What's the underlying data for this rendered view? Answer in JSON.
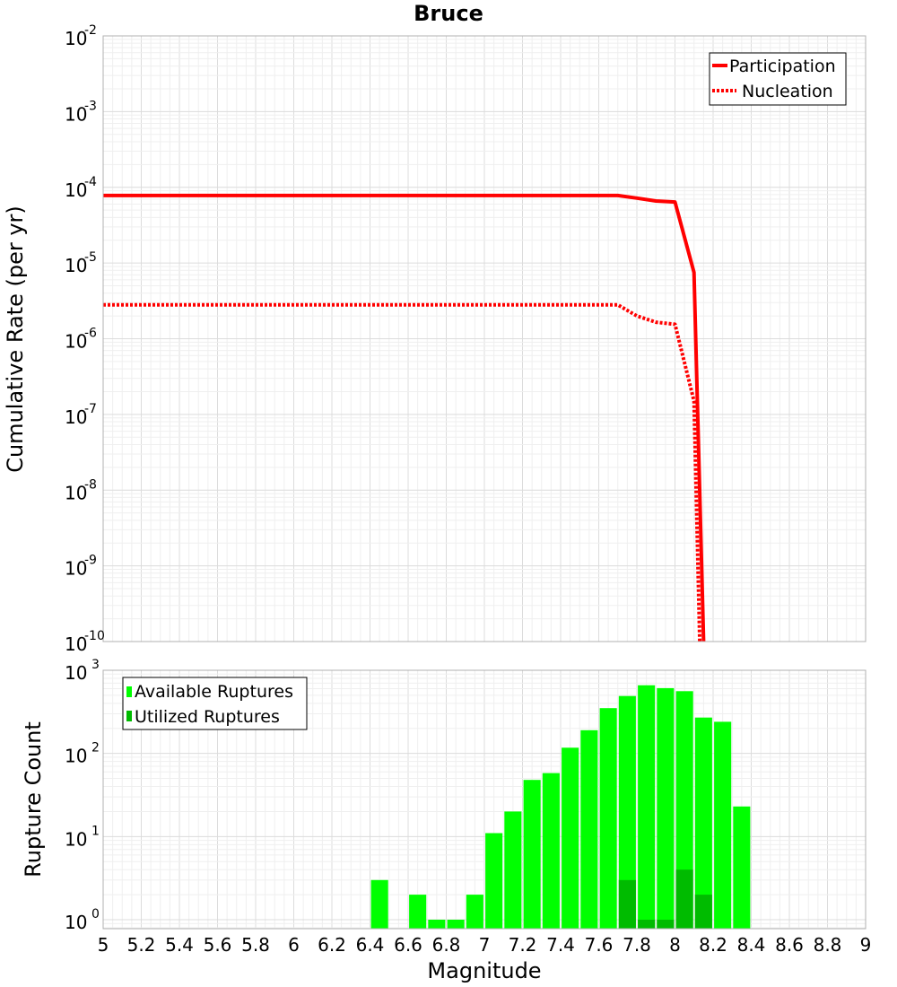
{
  "chart_data": [
    {
      "type": "line",
      "title": "Bruce",
      "xlabel": "",
      "ylabel": "Cumulative Rate (per yr)",
      "yscale": "log",
      "xlim": [
        5,
        9
      ],
      "ylim": [
        1e-10,
        0.01
      ],
      "y_ticks": [
        {
          "base": "10",
          "exp": "-2",
          "value": 0.01
        },
        {
          "base": "10",
          "exp": "-3",
          "value": 0.001
        },
        {
          "base": "10",
          "exp": "-4",
          "value": 0.0001
        },
        {
          "base": "10",
          "exp": "-5",
          "value": 1e-05
        },
        {
          "base": "10",
          "exp": "-6",
          "value": 1e-06
        },
        {
          "base": "10",
          "exp": "-7",
          "value": 1e-07
        },
        {
          "base": "10",
          "exp": "-8",
          "value": 1e-08
        },
        {
          "base": "10",
          "exp": "-9",
          "value": 1e-09
        },
        {
          "base": "10",
          "exp": "-10",
          "value": 1e-10
        }
      ],
      "legend_position": "top-right",
      "series": [
        {
          "name": "Participation",
          "color": "#ff0000",
          "style": "solid",
          "x": [
            5.0,
            7.7,
            7.8,
            7.9,
            8.0,
            8.1,
            8.15
          ],
          "y": [
            7.8e-05,
            7.8e-05,
            7.2e-05,
            6.6e-05,
            6.4e-05,
            7.5e-06,
            1e-10
          ]
        },
        {
          "name": "Nucleation",
          "color": "#ff0000",
          "style": "dotted",
          "x": [
            5.0,
            7.7,
            7.8,
            7.9,
            8.0,
            8.1,
            8.13
          ],
          "y": [
            2.8e-06,
            2.8e-06,
            2e-06,
            1.65e-06,
            1.55e-06,
            1.5e-07,
            1e-10
          ]
        }
      ]
    },
    {
      "type": "bar",
      "xlabel": "Magnitude",
      "ylabel": "Rupture Count",
      "yscale": "log",
      "xlim": [
        5,
        9
      ],
      "ylim": [
        0.78,
        1000
      ],
      "bin_width": 0.1,
      "x_tick_labels": [
        "5",
        "5.2",
        "5.4",
        "5.6",
        "5.8",
        "6",
        "6.2",
        "6.4",
        "6.6",
        "6.8",
        "7",
        "7.2",
        "7.4",
        "7.6",
        "7.8",
        "8",
        "8.2",
        "8.4",
        "8.6",
        "8.8",
        "9"
      ],
      "y_ticks": [
        {
          "base": "10",
          "exp": "3",
          "value": 1000
        },
        {
          "base": "10",
          "exp": "2",
          "value": 100
        },
        {
          "base": "10",
          "exp": "1",
          "value": 10
        },
        {
          "base": "10",
          "exp": "0",
          "value": 1
        }
      ],
      "legend_position": "top-left",
      "series": [
        {
          "name": "Available Ruptures",
          "color": "#00ff00",
          "x": [
            6.45,
            6.65,
            6.75,
            6.85,
            6.95,
            7.05,
            7.15,
            7.25,
            7.35,
            7.45,
            7.55,
            7.65,
            7.75,
            7.85,
            7.95,
            8.05,
            8.15,
            8.25,
            8.35
          ],
          "values": [
            3,
            2,
            1,
            1,
            2,
            11,
            20,
            48,
            58,
            117,
            190,
            350,
            490,
            660,
            610,
            560,
            270,
            240,
            23
          ]
        },
        {
          "name": "Utilized Ruptures",
          "color": "#00bb00",
          "x": [
            7.75,
            7.85,
            7.95,
            8.05,
            8.15
          ],
          "values": [
            3,
            1,
            1,
            4,
            2
          ]
        }
      ]
    }
  ]
}
